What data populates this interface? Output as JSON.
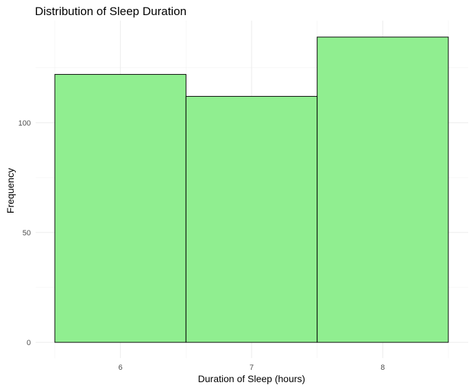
{
  "chart_data": {
    "type": "bar",
    "title": "Distribution of Sleep Duration",
    "xlabel": "Duration of Sleep (hours)",
    "ylabel": "Frequency",
    "categories": [
      "6",
      "7",
      "8"
    ],
    "x": [
      6,
      7,
      8
    ],
    "values": [
      122,
      112,
      139
    ],
    "bin_width": 1,
    "xlim": [
      5.5,
      8.5
    ],
    "ylim": [
      0,
      139
    ],
    "y_ticks": [
      0,
      50,
      100
    ],
    "bar_fill": "#90EE90",
    "bar_edge": "#000000",
    "grid": true,
    "legend": "none"
  }
}
